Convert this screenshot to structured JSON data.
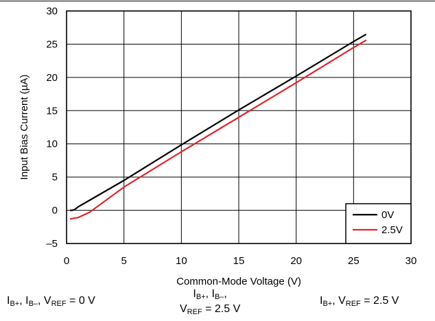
{
  "chart_data": {
    "type": "line",
    "title": "",
    "xlabel": "Common-Mode Voltage (V)",
    "ylabel": "Input Bias Current (µA)",
    "xlim": [
      0,
      30
    ],
    "ylim": [
      -5,
      30
    ],
    "xticks": [
      "0",
      "5",
      "10",
      "15",
      "20",
      "25",
      "30"
    ],
    "yticks": [
      "–5",
      "0",
      "5",
      "10",
      "15",
      "20",
      "25",
      "30"
    ],
    "grid": true,
    "legend_position": "bottom-right",
    "series": [
      {
        "name": "0V",
        "color": "#000000",
        "x": [
          0.3,
          0.5,
          0.7,
          1.0,
          2.0,
          5,
          10,
          15,
          20,
          25,
          26.1
        ],
        "y": [
          0.0,
          0.0,
          0.1,
          0.5,
          1.5,
          4.5,
          9.85,
          15.1,
          20.2,
          25.4,
          26.5
        ]
      },
      {
        "name": "2.5V",
        "color": "#e0242a",
        "x": [
          0.3,
          1.0,
          1.5,
          2.0,
          5,
          10,
          15,
          20,
          25,
          26.1
        ],
        "y": [
          -1.3,
          -1.1,
          -0.7,
          -0.3,
          3.5,
          8.8,
          14.0,
          19.2,
          24.5,
          25.6
        ]
      }
    ]
  },
  "captions": {
    "left": {
      "prefix": "I",
      "sub1": "B+",
      "mid1": ", I",
      "sub2": "B–",
      "mid2": ", V",
      "sub3": "REF",
      "suffix": " = 0 V"
    },
    "center": {
      "l1a": "I",
      "l1s1": "B+",
      "l1b": ", I",
      "l1s2": "B–",
      "l1c": ",",
      "l2a": "V",
      "l2s": "REF",
      "l2b": " = 2.5 V"
    },
    "right": {
      "prefix": "I",
      "sub1": "B+",
      "mid1": ", V",
      "sub2": "REF",
      "suffix": " = 2.5 V"
    }
  }
}
